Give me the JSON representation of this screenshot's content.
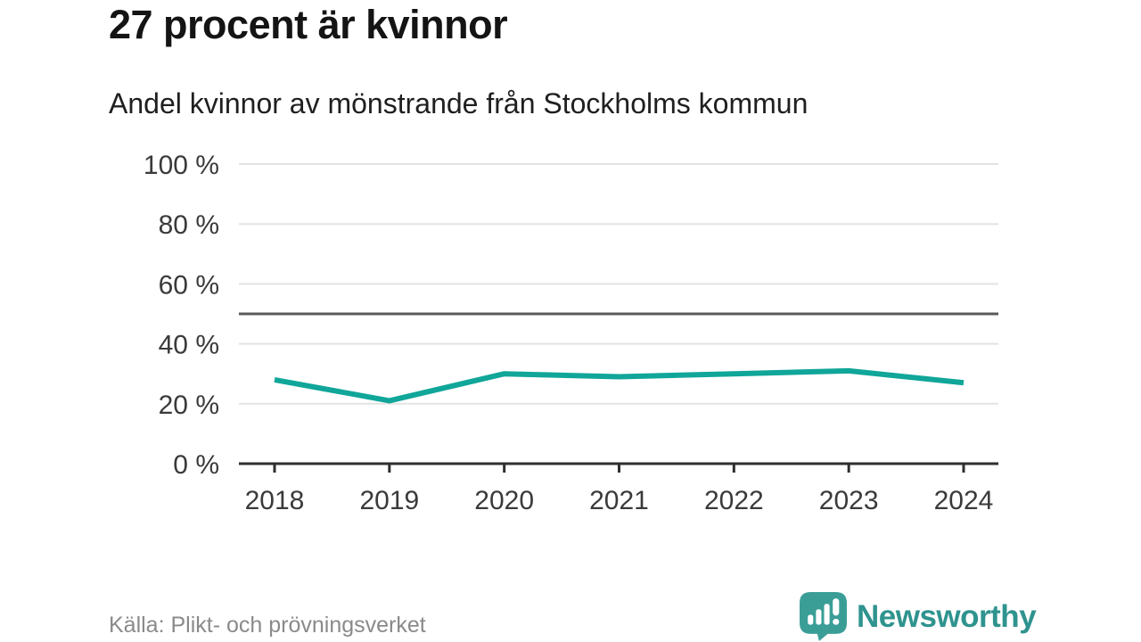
{
  "header": {
    "title": "27 procent är kvinnor",
    "subtitle": "Andel kvinnor av mönstrande från Stockholms kommun"
  },
  "footer": {
    "source": "Källa: Plikt- och prövningsverket",
    "logo_text": "Newsworthy"
  },
  "colors": {
    "line": "#10a699",
    "brand_teal": "#3a9e97",
    "wordmark_teal": "#2f938e",
    "grid": "#e3e3e3",
    "reference_line": "#5a5a5a",
    "axis": "#2e2e2e",
    "tick_label": "#3a3a3a"
  },
  "chart_data": {
    "type": "line",
    "title": "27 procent är kvinnor",
    "subtitle": "Andel kvinnor av mönstrande från Stockholms kommun",
    "x": [
      2018,
      2019,
      2020,
      2021,
      2022,
      2023,
      2024
    ],
    "series": [
      {
        "name": "Andel kvinnor av mönstrande",
        "values": [
          28,
          21,
          30,
          29,
          30,
          31,
          27
        ]
      }
    ],
    "ylim": [
      0,
      100
    ],
    "yticks": [
      0,
      20,
      40,
      60,
      80,
      100
    ],
    "ytick_suffix": " %",
    "reference_line": 50,
    "grid": "horizontal",
    "legend": "none",
    "line_color": "#10a699",
    "source": "Källa: Plikt- och prövningsverket"
  }
}
